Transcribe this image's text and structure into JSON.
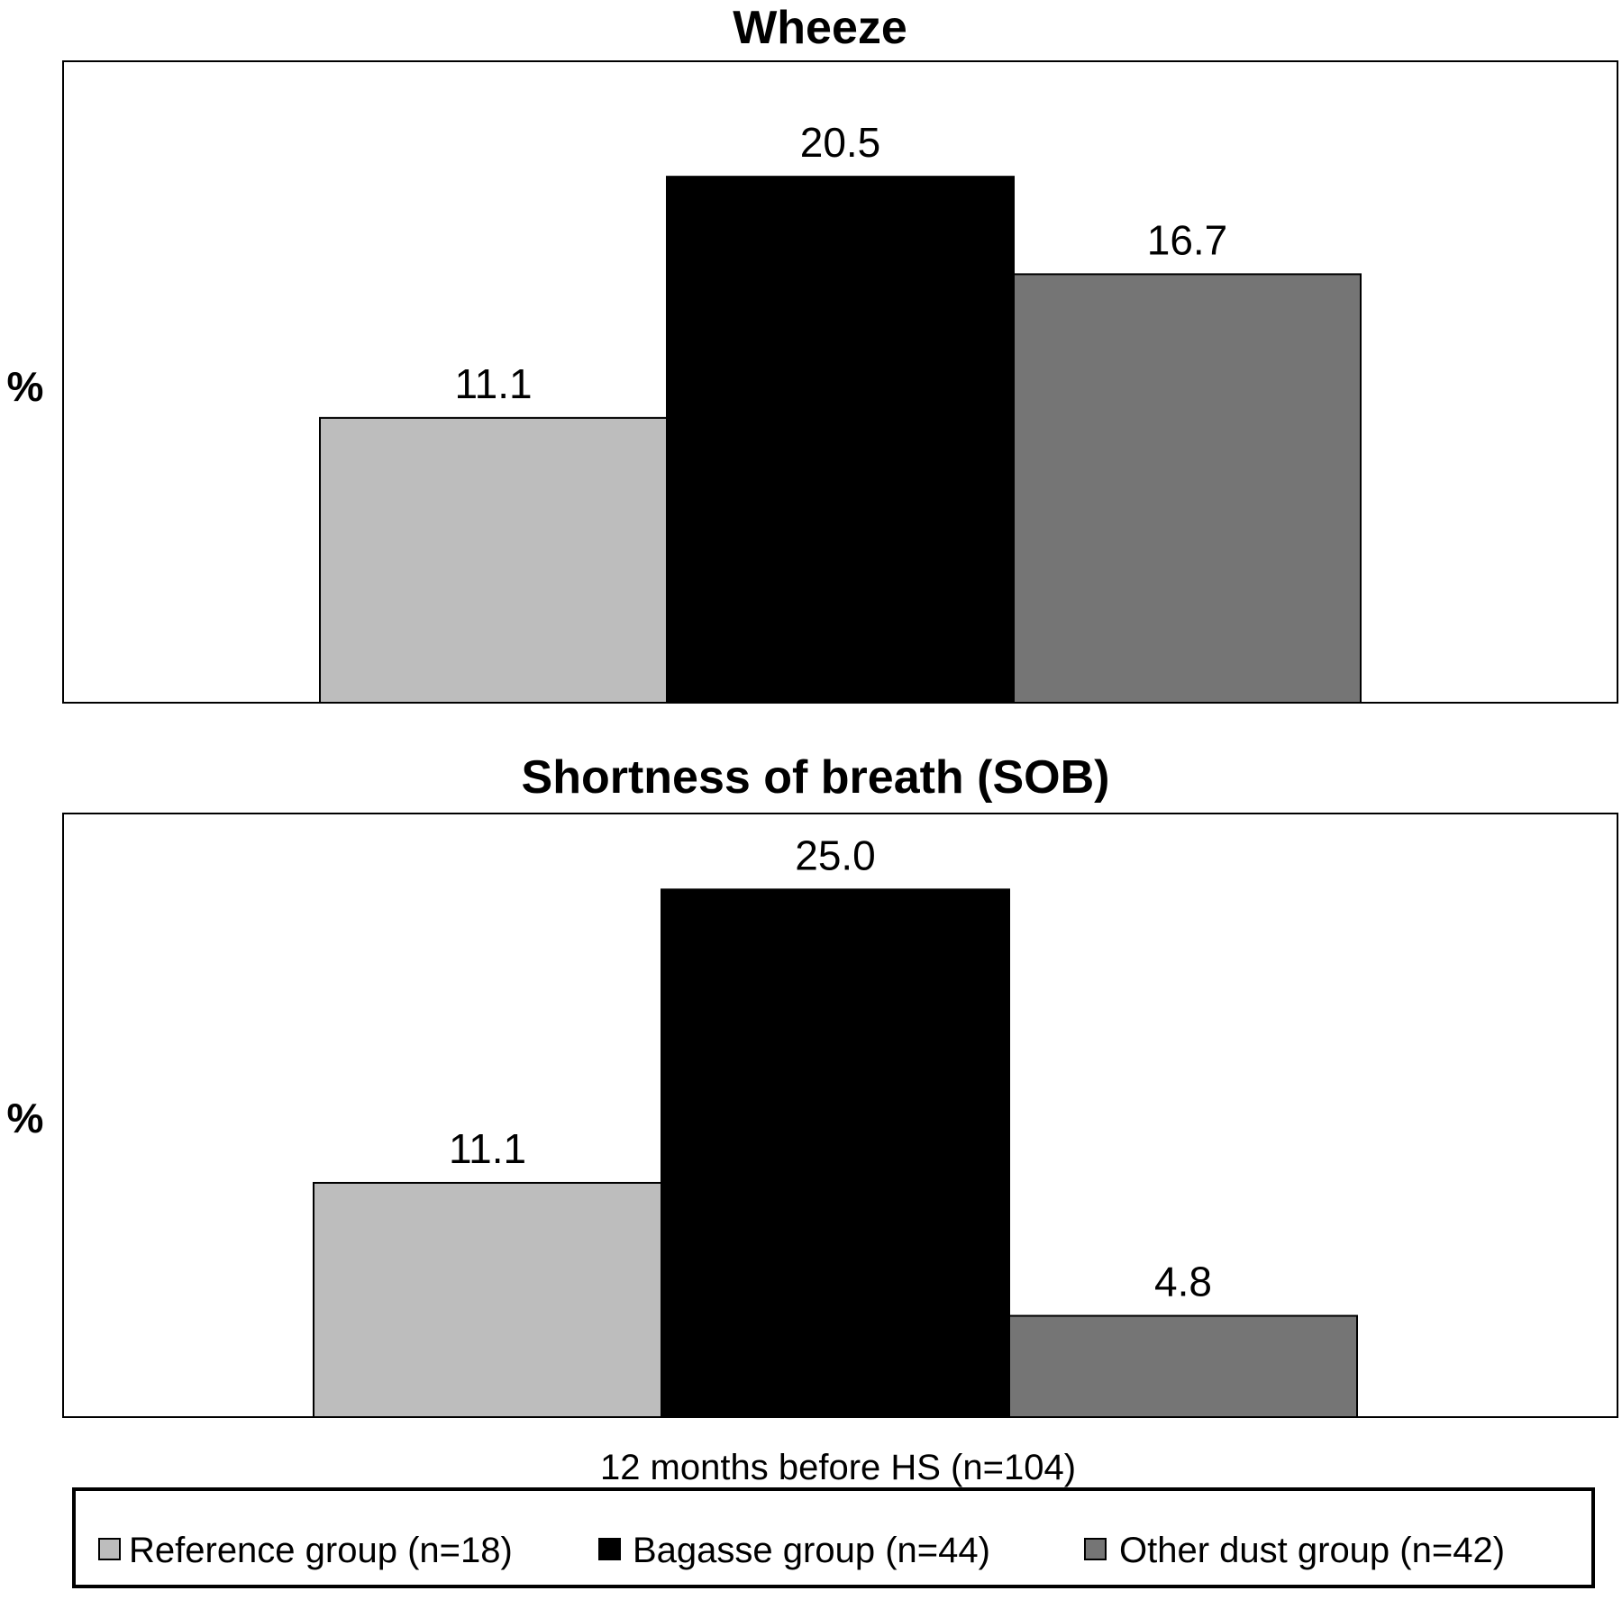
{
  "chart_data": [
    {
      "type": "bar",
      "title": "Wheeze",
      "ylabel": "%",
      "xlabel": "",
      "categories": [
        ""
      ],
      "series": [
        {
          "name": "Reference group (n=18)",
          "values": [
            11.1
          ],
          "color": "#bdbdbd"
        },
        {
          "name": "Bagasse group (n=44)",
          "values": [
            20.5
          ],
          "color": "#000000"
        },
        {
          "name": "Other dust group (n=42)",
          "values": [
            16.7
          ],
          "color": "#757575"
        }
      ],
      "data_labels": [
        "11.1",
        "20.5",
        "16.7"
      ],
      "ylim": [
        0,
        25
      ],
      "grid": false
    },
    {
      "type": "bar",
      "title": "Shortness of breath (SOB)",
      "ylabel": "%",
      "xlabel": "12 months before HS (n=104)",
      "categories": [
        "12 months before HS (n=104)"
      ],
      "series": [
        {
          "name": "Reference group (n=18)",
          "values": [
            11.1
          ],
          "color": "#bdbdbd"
        },
        {
          "name": "Bagasse group (n=44)",
          "values": [
            25.0
          ],
          "color": "#000000"
        },
        {
          "name": "Other dust group (n=42)",
          "values": [
            4.8
          ],
          "color": "#757575"
        }
      ],
      "data_labels": [
        "11.1",
        "25.0",
        "4.8"
      ],
      "ylim": [
        0,
        28.6
      ],
      "grid": false
    }
  ],
  "legend": {
    "placement": "bottom",
    "items": [
      {
        "label": "Reference group (n=18)",
        "color": "#bdbdbd"
      },
      {
        "label": "Bagasse group (n=44)",
        "color": "#000000"
      },
      {
        "label": "Other dust group (n=42)",
        "color": "#757575"
      }
    ]
  }
}
